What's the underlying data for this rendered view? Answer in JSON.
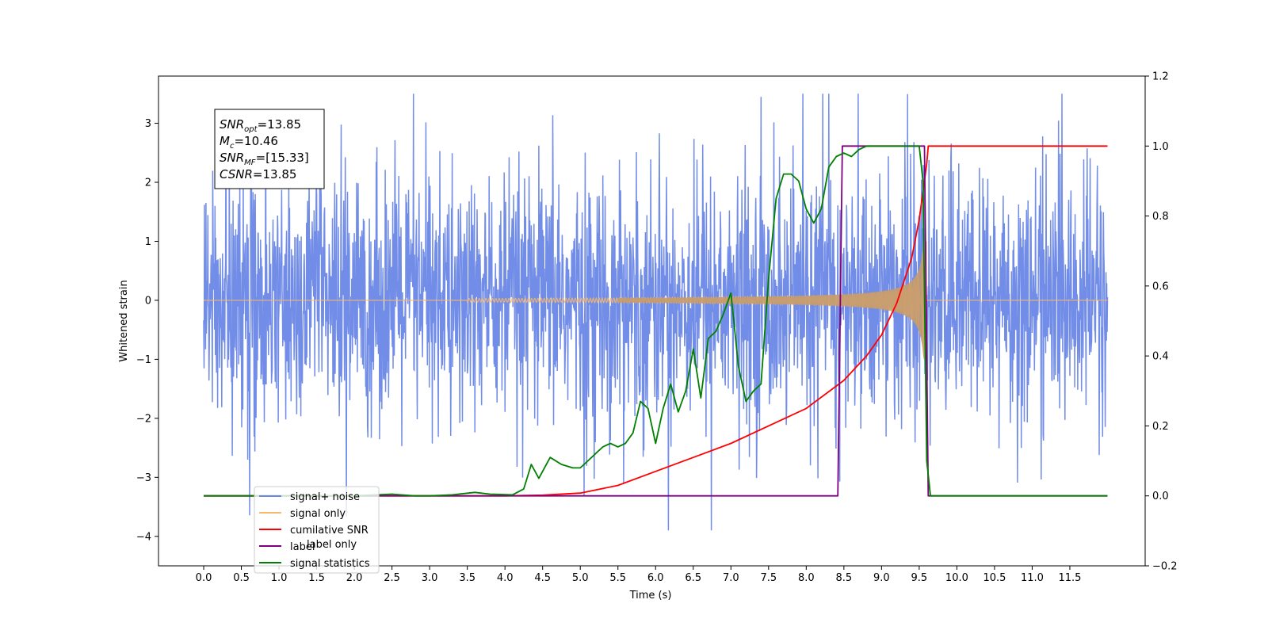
{
  "chart_data": {
    "type": "line",
    "title": "",
    "xlabel": "Time (s)",
    "ylabel": "Whitened strain",
    "xlim": [
      -0.6,
      12.5
    ],
    "ylim": [
      -4.5,
      3.8
    ],
    "y2lim": [
      -0.2,
      1.2
    ],
    "x_ticks": [
      "0.0",
      "0.5",
      "1.0",
      "1.5",
      "2.0",
      "2.5",
      "3.0",
      "3.5",
      "4.0",
      "4.5",
      "5.0",
      "5.5",
      "6.0",
      "6.5",
      "7.0",
      "7.5",
      "8.0",
      "8.5",
      "9.0",
      "9.5",
      "10.0",
      "10.5",
      "11.0",
      "11.5"
    ],
    "y_ticks": [
      "−4",
      "−3",
      "−2",
      "−1",
      "0",
      "1",
      "2",
      "3"
    ],
    "y2_ticks": [
      "−0.2",
      "0.0",
      "0.2",
      "0.4",
      "0.6",
      "0.8",
      "1.0",
      "1.2"
    ],
    "grid": false,
    "legend_position": "lower-left",
    "annotation": {
      "lines": [
        {
          "sym": "SNR",
          "sub": "opt",
          "value": "=13.85"
        },
        {
          "sym": "M",
          "sub": "c",
          "value": "=10.46"
        },
        {
          "sym": "SNR",
          "sub": "MF",
          "value": "=[15.33]"
        },
        {
          "sym": "CSNR",
          "sub": "",
          "value": "=13.85"
        }
      ]
    },
    "series": [
      {
        "name": "signal+ noise",
        "axis": "left",
        "color": "#6a87e6",
        "description_range": [
          -3.9,
          3.5
        ],
        "x_range": [
          0.0,
          12.0
        ]
      },
      {
        "name": "signal only",
        "axis": "left",
        "color": "#f7b96a",
        "chirp_end": 9.6,
        "peak_amplitude": 1.0
      },
      {
        "name": "cumilative SNR",
        "axis": "right",
        "color": "#ff0000",
        "x": [
          0.0,
          4.0,
          4.5,
          5.0,
          5.5,
          6.0,
          6.5,
          7.0,
          7.5,
          8.0,
          8.5,
          8.8,
          9.0,
          9.2,
          9.4,
          9.5,
          9.6,
          9.62,
          12.0
        ],
        "y": [
          0.0,
          0.0,
          0.002,
          0.008,
          0.03,
          0.07,
          0.11,
          0.15,
          0.2,
          0.25,
          0.33,
          0.4,
          0.46,
          0.55,
          0.68,
          0.79,
          0.95,
          1.0,
          1.0
        ]
      },
      {
        "name": "label",
        "axis": "right",
        "color": "#800080",
        "x": [
          0.0,
          8.42,
          8.48,
          9.57,
          9.62,
          12.0
        ],
        "y": [
          0.0,
          0.0,
          1.0,
          1.0,
          0.0,
          0.0
        ]
      },
      {
        "name": "signal statistics",
        "axis": "right",
        "color": "#008000",
        "x": [
          0.0,
          2.0,
          2.5,
          2.8,
          3.0,
          3.3,
          3.6,
          3.8,
          4.1,
          4.25,
          4.35,
          4.45,
          4.6,
          4.75,
          4.9,
          5.0,
          5.1,
          5.2,
          5.3,
          5.4,
          5.5,
          5.6,
          5.7,
          5.8,
          5.9,
          6.0,
          6.1,
          6.2,
          6.3,
          6.4,
          6.5,
          6.6,
          6.7,
          6.8,
          6.9,
          7.0,
          7.1,
          7.2,
          7.3,
          7.4,
          7.5,
          7.6,
          7.7,
          7.8,
          7.9,
          8.0,
          8.1,
          8.2,
          8.3,
          8.4,
          8.5,
          8.6,
          8.7,
          8.8,
          8.9,
          9.0,
          9.2,
          9.5,
          9.55,
          9.6,
          9.65,
          12.0
        ],
        "y": [
          0.0,
          0.0,
          0.005,
          0.0,
          0.0,
          0.003,
          0.01,
          0.005,
          0.003,
          0.02,
          0.09,
          0.05,
          0.11,
          0.09,
          0.08,
          0.08,
          0.1,
          0.12,
          0.14,
          0.15,
          0.14,
          0.15,
          0.18,
          0.27,
          0.25,
          0.15,
          0.25,
          0.32,
          0.24,
          0.3,
          0.42,
          0.28,
          0.45,
          0.47,
          0.52,
          0.58,
          0.37,
          0.27,
          0.3,
          0.32,
          0.62,
          0.85,
          0.92,
          0.92,
          0.9,
          0.82,
          0.78,
          0.82,
          0.94,
          0.97,
          0.98,
          0.97,
          0.99,
          1.0,
          1.0,
          1.0,
          1.0,
          1.0,
          0.9,
          0.1,
          0.0,
          0.0
        ]
      },
      {
        "name": "label only",
        "axis": "right",
        "color": "#9467bd",
        "hidden_behind_legend": true
      }
    ],
    "legend": [
      {
        "label": "signal+ noise",
        "color": "#6a87e6"
      },
      {
        "label": "signal only",
        "color": "#f7b96a"
      },
      {
        "label": "cumilative SNR",
        "color": "#ff0000"
      },
      {
        "label": "label",
        "color": "#800080"
      },
      {
        "label": "signal statistics",
        "color": "#008000"
      }
    ]
  }
}
